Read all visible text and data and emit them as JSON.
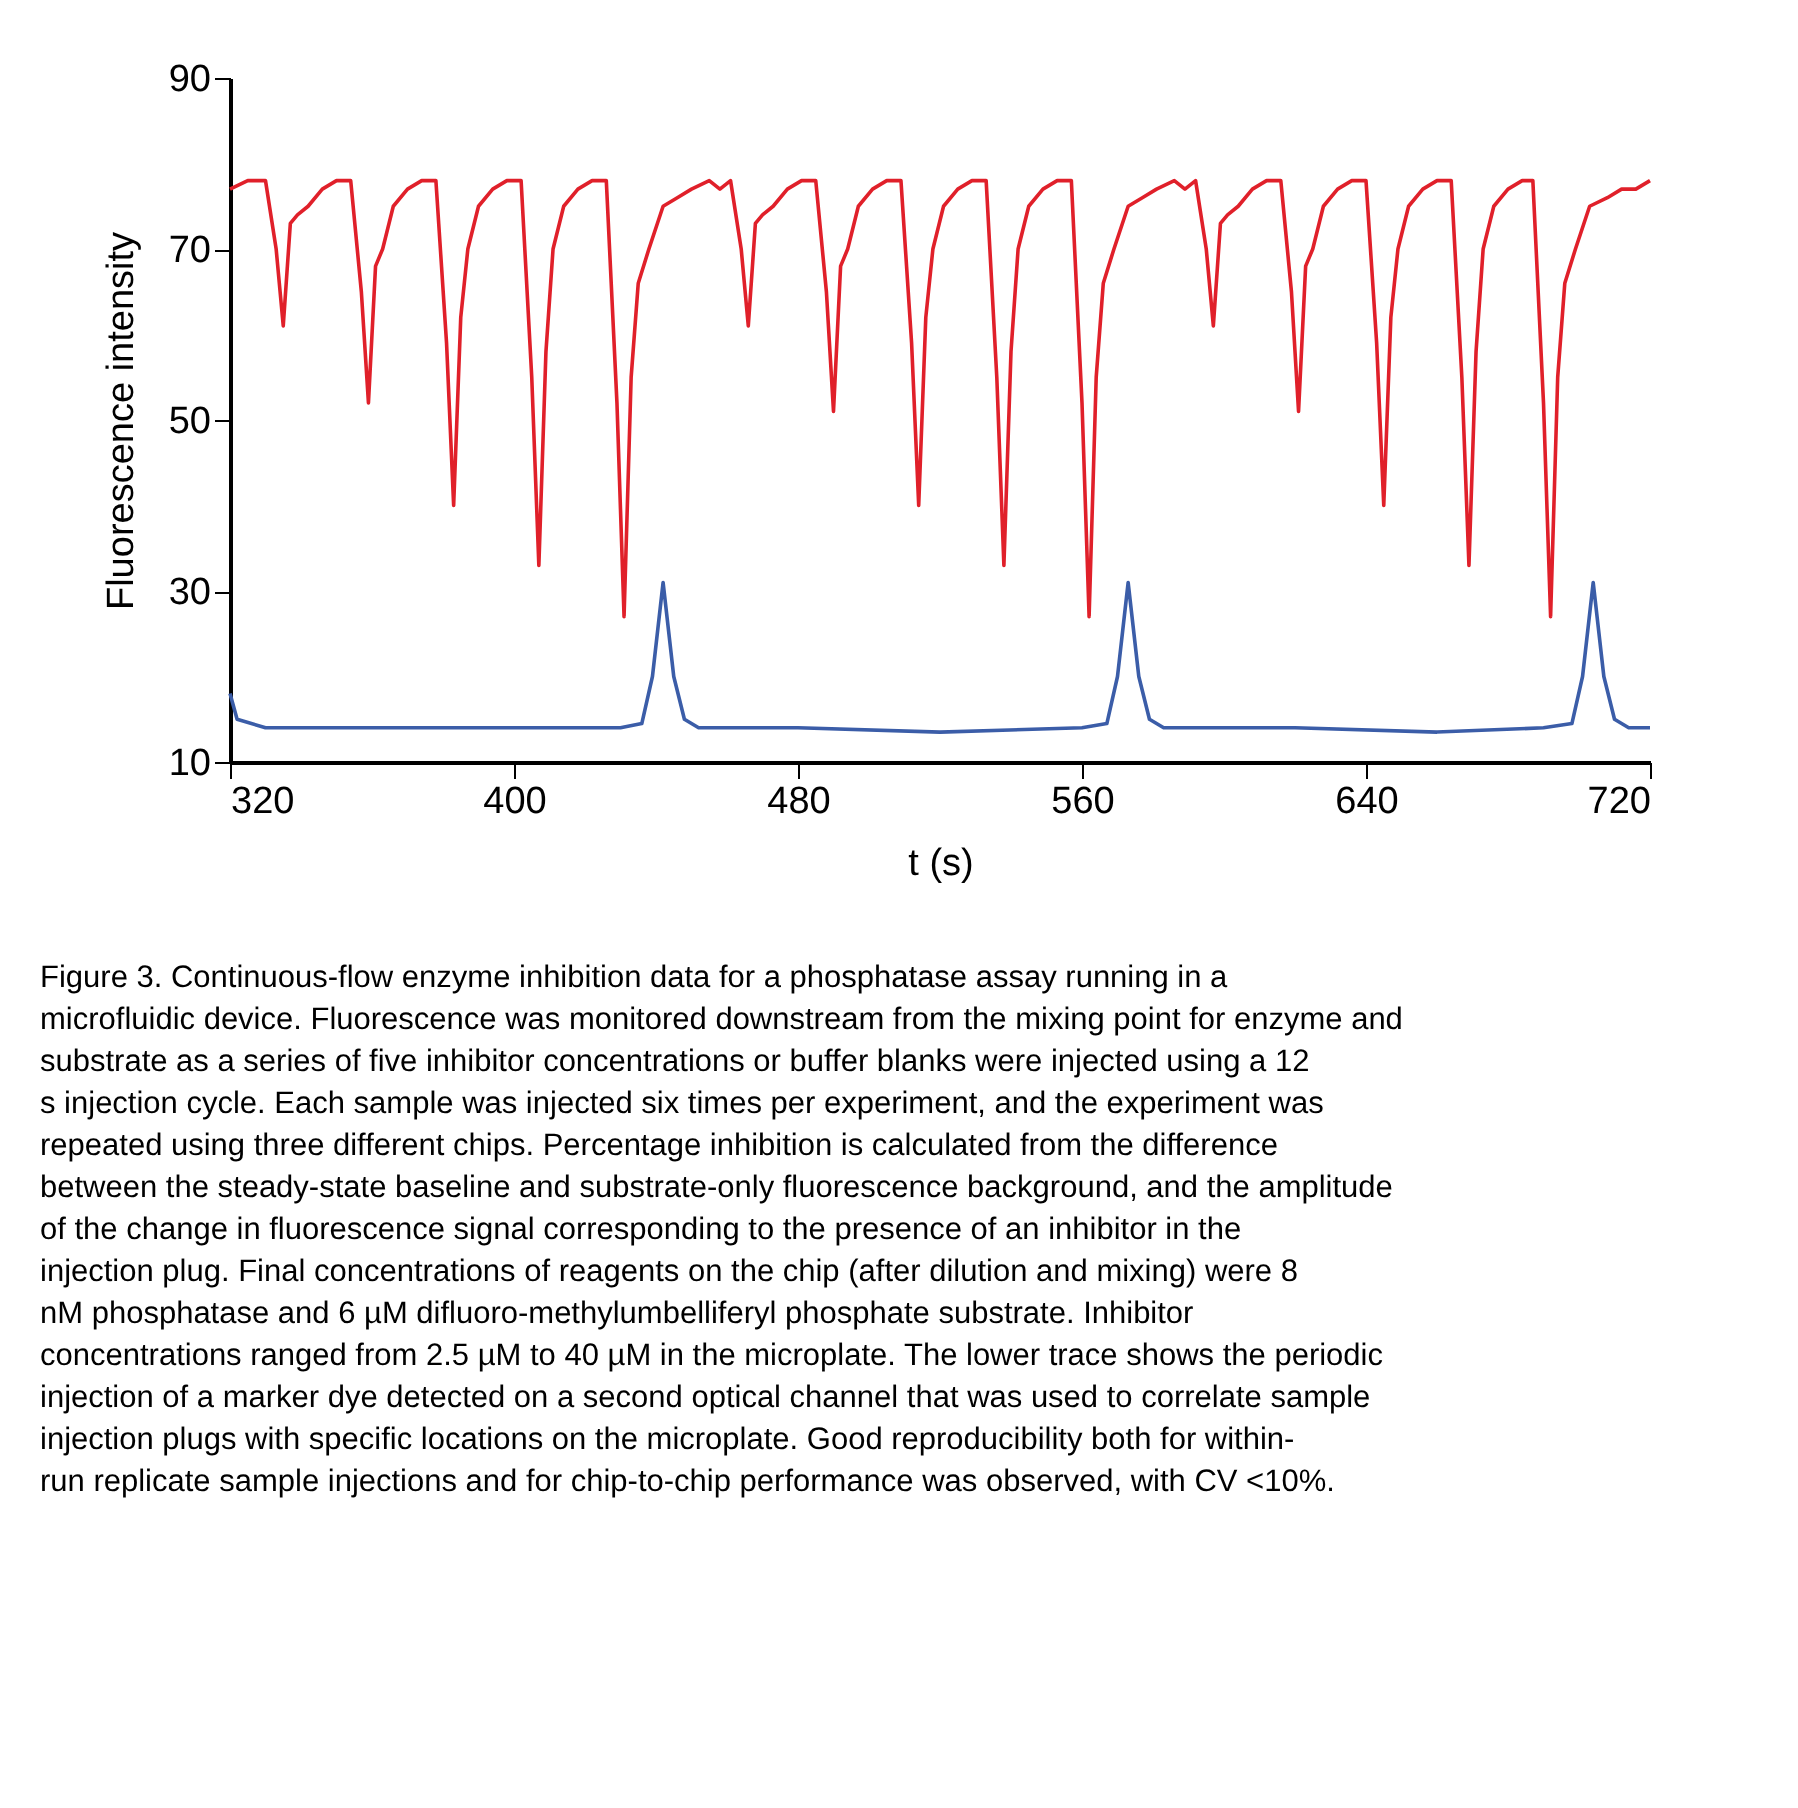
{
  "chart_data": {
    "type": "line",
    "xlabel": "t (s)",
    "ylabel": "Fluorescence intensity",
    "xlim": [
      320,
      720
    ],
    "xticks": [
      320,
      400,
      480,
      560,
      640,
      720
    ],
    "ylim": [
      10,
      90
    ],
    "yticks": [
      10,
      30,
      50,
      70,
      90
    ],
    "grid": false,
    "marker": "none",
    "line_style": "solid",
    "series": [
      {
        "color": "#e0202a",
        "x": [
          320,
          325,
          330,
          333,
          335,
          337,
          339,
          342,
          346,
          350,
          354,
          357,
          359,
          361,
          363,
          366,
          370,
          374,
          378,
          381,
          383,
          385,
          387,
          390,
          394,
          398,
          402,
          405,
          407,
          409,
          411,
          414,
          418,
          422,
          426,
          429,
          431,
          433,
          435,
          438,
          442,
          446,
          450,
          455,
          458,
          461,
          464,
          466,
          468,
          470,
          473,
          477,
          481,
          485,
          488,
          490,
          492,
          494,
          497,
          501,
          505,
          509,
          512,
          514,
          516,
          518,
          521,
          525,
          529,
          533,
          536,
          538,
          540,
          542,
          545,
          549,
          553,
          557,
          560,
          562,
          564,
          566,
          569,
          573,
          577,
          581,
          586,
          589,
          592,
          595,
          597,
          599,
          601,
          604,
          608,
          612,
          616,
          619,
          621,
          623,
          625,
          628,
          632,
          636,
          640,
          643,
          645,
          647,
          649,
          652,
          656,
          660,
          664,
          667,
          669,
          671,
          673,
          676,
          680,
          684,
          687,
          690,
          692,
          694,
          696,
          699,
          703,
          708,
          712,
          716,
          720
        ],
        "values": [
          77,
          78,
          78,
          70,
          61,
          73,
          74,
          75,
          77,
          78,
          78,
          65,
          52,
          68,
          70,
          75,
          77,
          78,
          78,
          59,
          40,
          62,
          70,
          75,
          77,
          78,
          78,
          55,
          33,
          58,
          70,
          75,
          77,
          78,
          78,
          52,
          27,
          55,
          66,
          70,
          75,
          76,
          77,
          78,
          77,
          78,
          70,
          61,
          73,
          74,
          75,
          77,
          78,
          78,
          65,
          51,
          68,
          70,
          75,
          77,
          78,
          78,
          59,
          40,
          62,
          70,
          75,
          77,
          78,
          78,
          55,
          33,
          58,
          70,
          75,
          77,
          78,
          78,
          52,
          27,
          55,
          66,
          70,
          75,
          76,
          77,
          78,
          77,
          78,
          70,
          61,
          73,
          74,
          75,
          77,
          78,
          78,
          65,
          51,
          68,
          70,
          75,
          77,
          78,
          78,
          59,
          40,
          62,
          70,
          75,
          77,
          78,
          78,
          55,
          33,
          58,
          70,
          75,
          77,
          78,
          78,
          52,
          27,
          55,
          66,
          70,
          75,
          76,
          77,
          77,
          78
        ]
      },
      {
        "color": "#3b5da8",
        "x": [
          320,
          322,
          330,
          360,
          400,
          430,
          436,
          439,
          442,
          445,
          448,
          452,
          480,
          520,
          560,
          567,
          570,
          573,
          576,
          579,
          583,
          620,
          660,
          690,
          698,
          701,
          704,
          707,
          710,
          714,
          720
        ],
        "values": [
          18,
          15,
          14,
          14,
          14,
          14,
          14.5,
          20,
          31,
          20,
          15,
          14,
          14,
          13.5,
          14,
          14.5,
          20,
          31,
          20,
          15,
          14,
          14,
          13.5,
          14,
          14.5,
          20,
          31,
          20,
          15,
          14,
          14
        ]
      }
    ],
    "annotations": [
      "Figure 3. Continuous-flow enzyme inhibition data for a phosphatase assay running in a microfluidic device. Fluorescence was monitored downstream from the mixing point for enzyme and substrate as a series of five inhibitor concentrations or buffer blanks were injected using a 12 s injection cycle. Each sample was injected six times per experiment, and the experiment was repeated using three different chips. Percentage inhibition is calculated from the difference between the steady-state baseline and substrate-only fluorescence background, and the amplitude of the change in fluorescence signal corresponding to the presence of an inhibitor in the injection plug. Final concentrations of reagents on the chip (after dilution and mixing) were 8 nM phosphatase and 6 µM difluoro-methylumbelliferyl phosphate substrate. Inhibitor concentrations ranged from 2.5 µM to 40 µM in the microplate. The lower trace shows the periodic injection of a marker dye detected on a second optical channel that was used to correlate sample injection plugs with specific locations on the microplate. Good reproducibility both for within-run replicate sample injections and for chip-to-chip performance was observed, with CV <10%."
    ]
  }
}
